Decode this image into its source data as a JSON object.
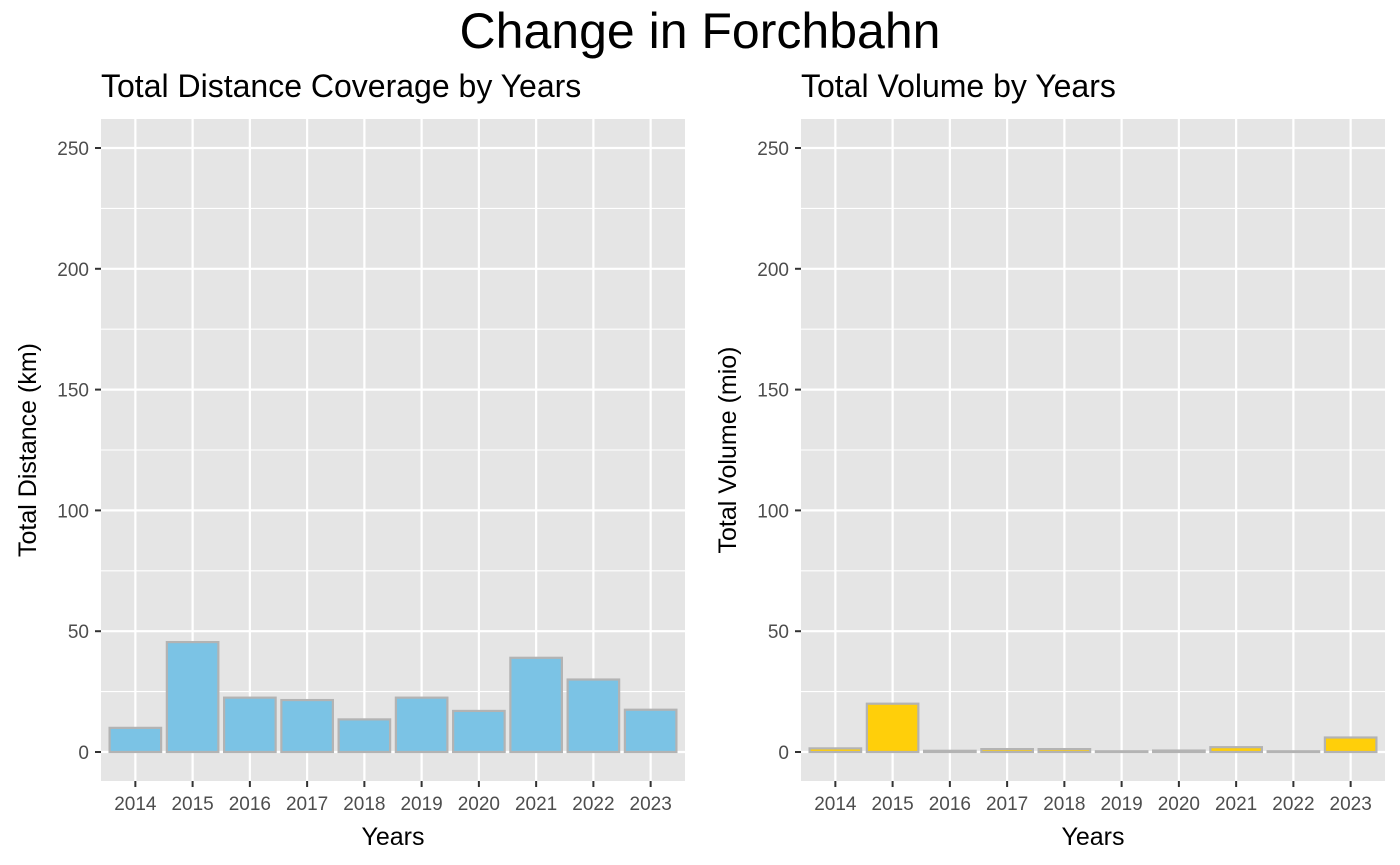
{
  "title": "Change in Forchbahn",
  "colors": {
    "panel_background": "#e5e5e5",
    "gridline": "#ffffff",
    "bar_outline": "#b3b3b3",
    "tick_text": "#4d4d4d",
    "text": "#000000"
  },
  "chart_data": [
    {
      "type": "bar",
      "title": "Total Distance Coverage by Years",
      "xlabel": "Years",
      "ylabel": "Total Distance (km)",
      "categories": [
        "2014",
        "2015",
        "2016",
        "2017",
        "2018",
        "2019",
        "2020",
        "2021",
        "2022",
        "2023"
      ],
      "values": [
        10,
        45.5,
        22.5,
        21.5,
        13.5,
        22.5,
        17,
        39,
        30,
        17.5
      ],
      "ylim": [
        -12,
        262
      ],
      "yticks": [
        0,
        50,
        100,
        150,
        200,
        250
      ],
      "ytick_labels": [
        "0",
        "50",
        "100",
        "150",
        "200",
        "250"
      ],
      "bar_color": "#7bc3e5",
      "grid": true
    },
    {
      "type": "bar",
      "title": "Total Volume by Years",
      "xlabel": "Years",
      "ylabel": "Total Volume (mio)",
      "categories": [
        "2014",
        "2015",
        "2016",
        "2017",
        "2018",
        "2019",
        "2020",
        "2021",
        "2022",
        "2023"
      ],
      "values": [
        1.5,
        20,
        0.5,
        1.2,
        1.2,
        0.3,
        0.6,
        2,
        0.3,
        6
      ],
      "ylim": [
        -12,
        262
      ],
      "yticks": [
        0,
        50,
        100,
        150,
        200,
        250
      ],
      "ytick_labels": [
        "0",
        "50",
        "100",
        "150",
        "200",
        "250"
      ],
      "bar_color": "#ffcf0a",
      "grid": true
    }
  ]
}
